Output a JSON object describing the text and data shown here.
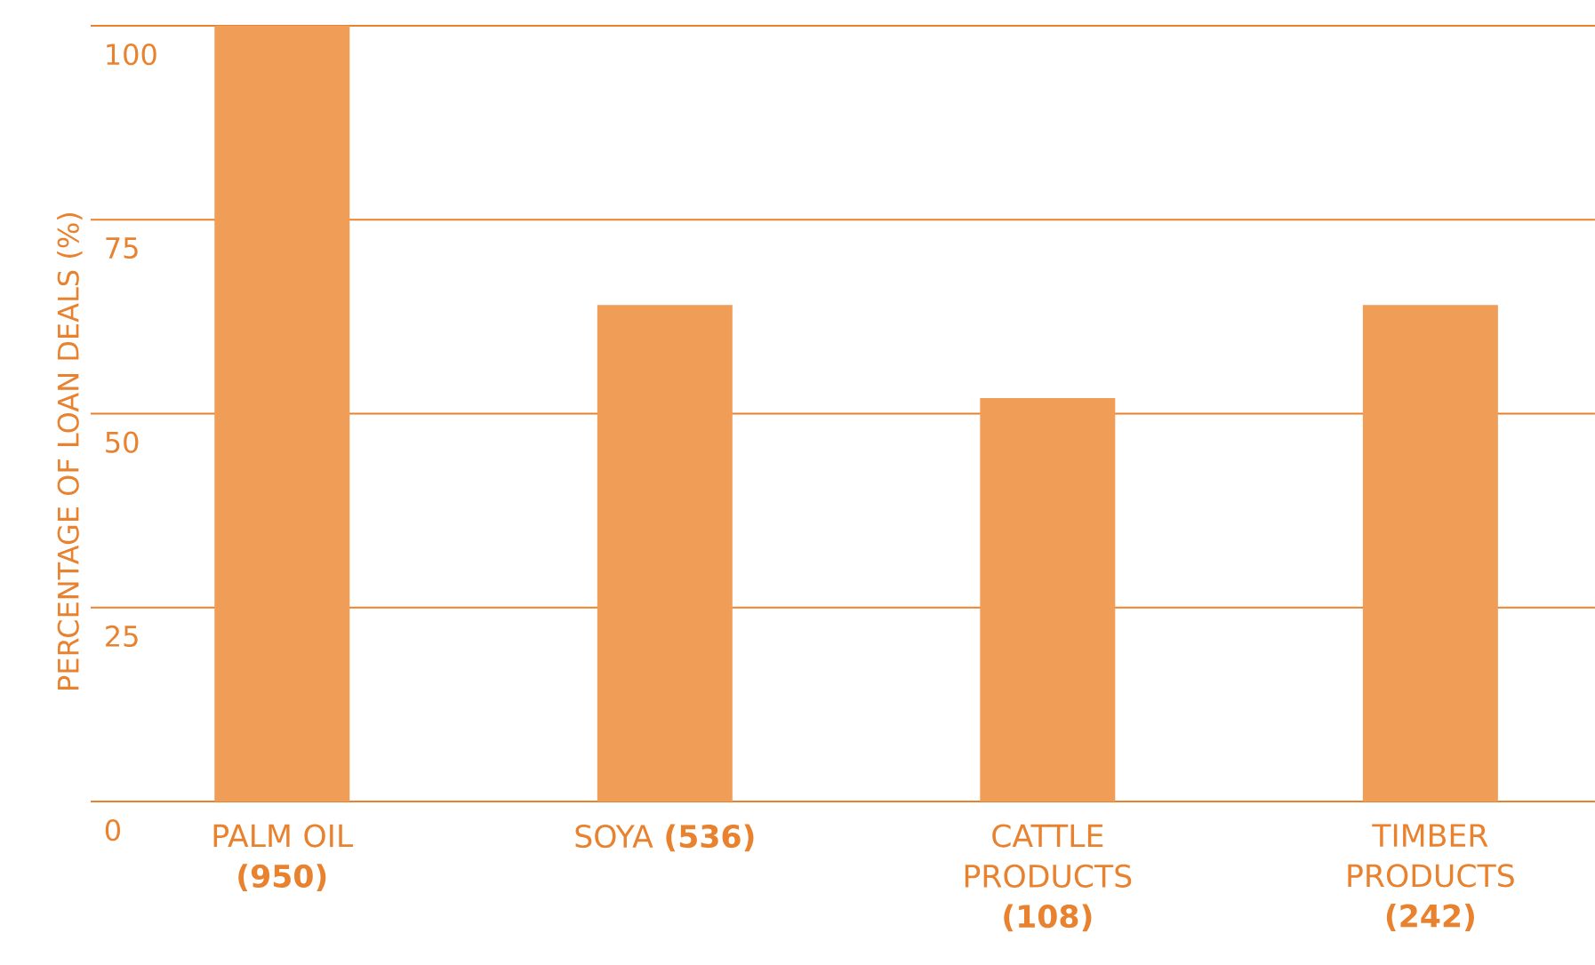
{
  "chart_data": {
    "type": "bar",
    "ylabel": "PERCENTAGE OF LOAN DEALS (%)",
    "categories": [
      "PALM OIL **(950)**",
      "SOYA **(536)**",
      "CATTLE PRODUCTS **(108)**",
      "TIMBER PRODUCTS **(242)**"
    ],
    "values": [
      100,
      64,
      52,
      64
    ],
    "color": "#f09d58",
    "ylim": [
      0,
      100
    ],
    "yticks": [
      0,
      25,
      50,
      75,
      100
    ],
    "grid": "y"
  }
}
